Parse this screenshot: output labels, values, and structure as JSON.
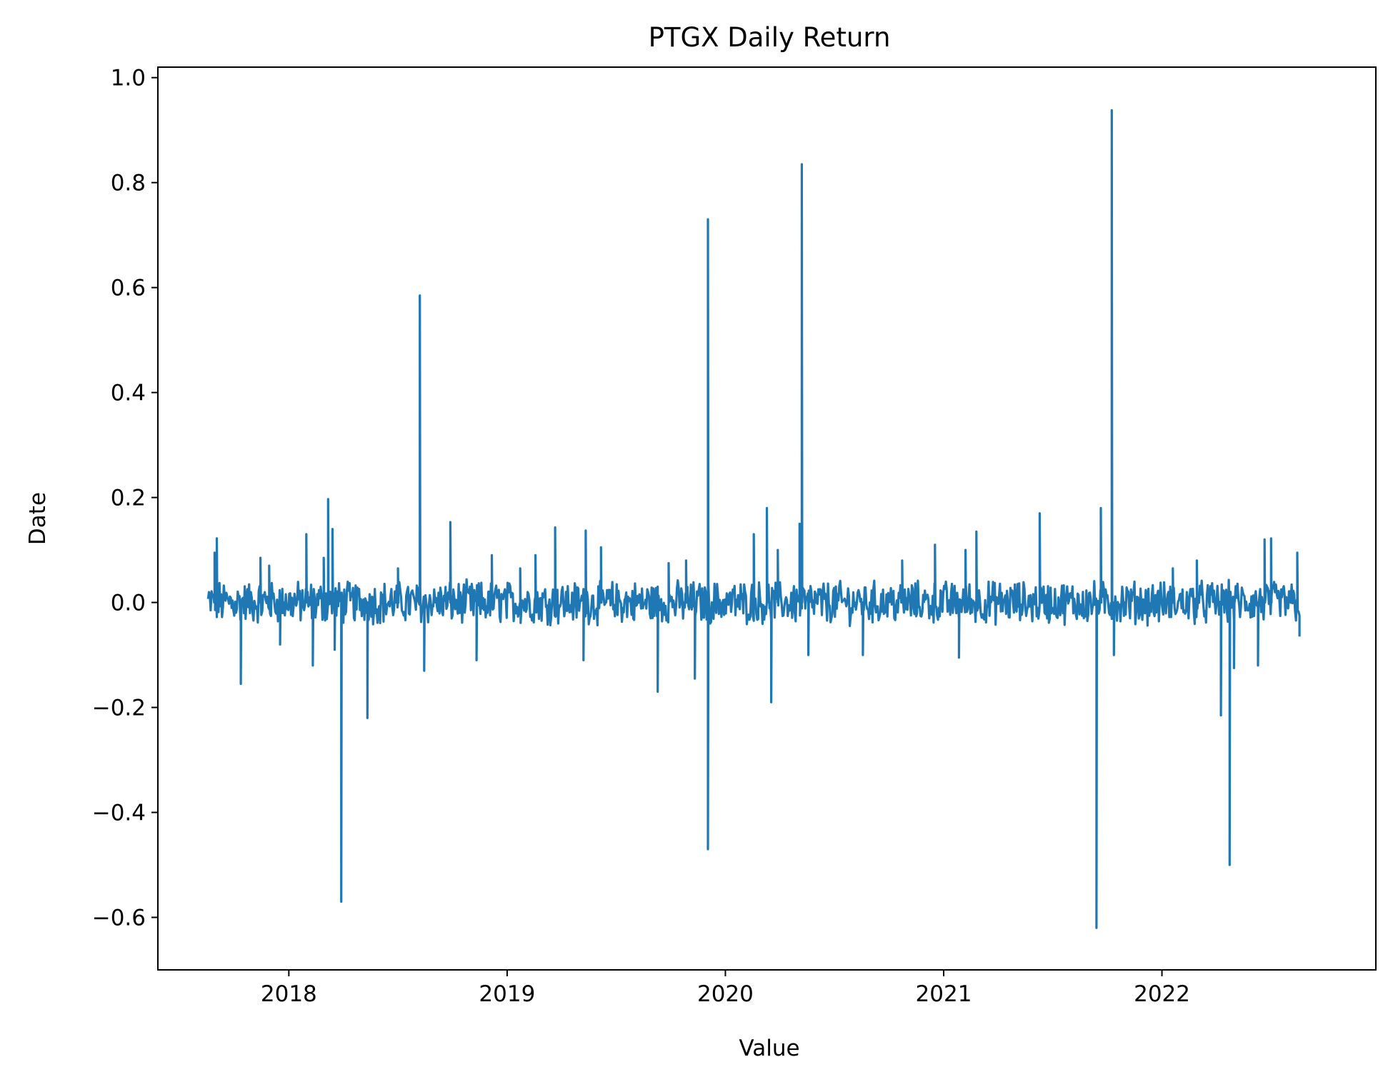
{
  "chart_data": {
    "type": "line",
    "title": "PTGX Daily Return",
    "xlabel": "Value",
    "ylabel": "Date",
    "xlim": [
      2017.4,
      2022.98
    ],
    "ylim": [
      -0.7,
      1.02
    ],
    "grid": false,
    "x_ticks": [
      2018,
      2019,
      2020,
      2021,
      2022
    ],
    "x_tick_labels": [
      "2018",
      "2019",
      "2020",
      "2021",
      "2022"
    ],
    "y_ticks": [
      -0.6,
      -0.4,
      -0.2,
      0.0,
      0.2,
      0.4,
      0.6,
      0.8,
      1.0
    ],
    "y_tick_labels": [
      "−0.6",
      "−0.4",
      "−0.2",
      "0.0",
      "0.2",
      "0.4",
      "0.6",
      "0.8",
      "1.0"
    ],
    "series": [
      {
        "name": "PTGX Daily Return",
        "color": "#1f77b4",
        "baseline_amplitude": 0.035,
        "start": 2017.63,
        "end": 2022.63,
        "step": 0.004,
        "spikes": [
          {
            "x": 2017.66,
            "y": 0.095
          },
          {
            "x": 2017.67,
            "y": 0.122
          },
          {
            "x": 2017.78,
            "y": -0.155
          },
          {
            "x": 2017.87,
            "y": 0.085
          },
          {
            "x": 2017.91,
            "y": 0.07
          },
          {
            "x": 2017.96,
            "y": -0.08
          },
          {
            "x": 2018.08,
            "y": 0.13
          },
          {
            "x": 2018.11,
            "y": -0.12
          },
          {
            "x": 2018.16,
            "y": 0.085
          },
          {
            "x": 2018.18,
            "y": 0.197
          },
          {
            "x": 2018.2,
            "y": 0.14
          },
          {
            "x": 2018.21,
            "y": -0.09
          },
          {
            "x": 2018.24,
            "y": -0.57
          },
          {
            "x": 2018.36,
            "y": -0.22
          },
          {
            "x": 2018.5,
            "y": 0.065
          },
          {
            "x": 2018.6,
            "y": 0.585
          },
          {
            "x": 2018.62,
            "y": -0.13
          },
          {
            "x": 2018.74,
            "y": 0.153
          },
          {
            "x": 2018.86,
            "y": -0.11
          },
          {
            "x": 2018.93,
            "y": 0.09
          },
          {
            "x": 2019.06,
            "y": 0.065
          },
          {
            "x": 2019.13,
            "y": 0.09
          },
          {
            "x": 2019.22,
            "y": 0.143
          },
          {
            "x": 2019.35,
            "y": -0.11
          },
          {
            "x": 2019.36,
            "y": 0.137
          },
          {
            "x": 2019.43,
            "y": 0.105
          },
          {
            "x": 2019.69,
            "y": -0.17
          },
          {
            "x": 2019.74,
            "y": 0.075
          },
          {
            "x": 2019.82,
            "y": 0.08
          },
          {
            "x": 2019.86,
            "y": -0.145
          },
          {
            "x": 2019.92,
            "y": 0.73
          },
          {
            "x": 2019.92,
            "y": -0.47
          },
          {
            "x": 2020.13,
            "y": 0.13
          },
          {
            "x": 2020.19,
            "y": 0.18
          },
          {
            "x": 2020.21,
            "y": -0.19
          },
          {
            "x": 2020.24,
            "y": 0.1
          },
          {
            "x": 2020.34,
            "y": 0.15
          },
          {
            "x": 2020.35,
            "y": 0.835
          },
          {
            "x": 2020.38,
            "y": -0.1
          },
          {
            "x": 2020.63,
            "y": -0.1
          },
          {
            "x": 2020.81,
            "y": 0.08
          },
          {
            "x": 2020.96,
            "y": 0.11
          },
          {
            "x": 2021.07,
            "y": -0.105
          },
          {
            "x": 2021.1,
            "y": 0.1
          },
          {
            "x": 2021.15,
            "y": 0.135
          },
          {
            "x": 2021.44,
            "y": 0.17
          },
          {
            "x": 2021.7,
            "y": -0.62
          },
          {
            "x": 2021.72,
            "y": 0.18
          },
          {
            "x": 2021.77,
            "y": 0.938
          },
          {
            "x": 2021.78,
            "y": -0.1
          },
          {
            "x": 2022.05,
            "y": 0.065
          },
          {
            "x": 2022.16,
            "y": 0.08
          },
          {
            "x": 2022.27,
            "y": -0.215
          },
          {
            "x": 2022.31,
            "y": -0.5
          },
          {
            "x": 2022.33,
            "y": -0.125
          },
          {
            "x": 2022.44,
            "y": -0.12
          },
          {
            "x": 2022.47,
            "y": 0.12
          },
          {
            "x": 2022.5,
            "y": 0.122
          },
          {
            "x": 2022.62,
            "y": 0.095
          },
          {
            "x": 2022.63,
            "y": -0.065
          }
        ]
      }
    ]
  }
}
